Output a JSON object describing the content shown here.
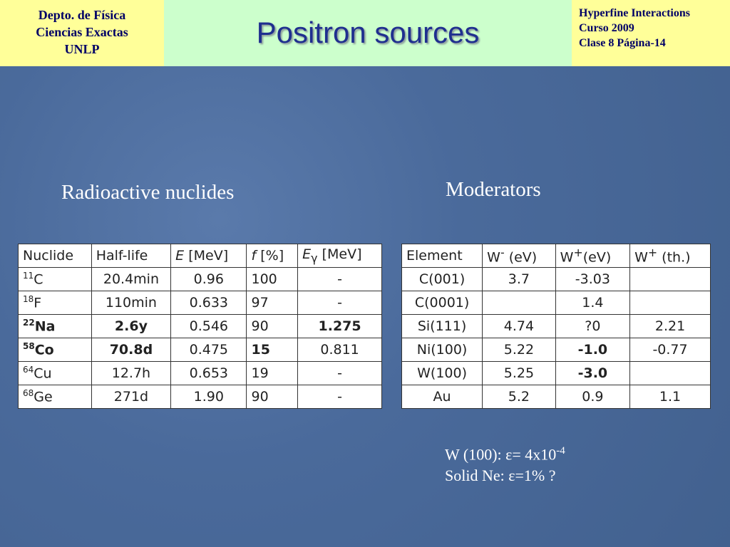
{
  "header": {
    "left": [
      "Depto. de Física",
      "Ciencias Exactas",
      "UNLP"
    ],
    "title": "Positron sources",
    "right": [
      "Hyperfine Interactions",
      "Curso 2009",
      "Clase 8  Página-14"
    ]
  },
  "nuclides": {
    "heading": "Radioactive nuclides",
    "columns": [
      "Nuclide",
      "Half-life",
      {
        "sym": "E",
        "rest": " [MeV]"
      },
      {
        "sym": "f",
        "rest": " [%]"
      },
      {
        "sym": "E",
        "sub": "γ",
        "rest": " [MeV]"
      }
    ],
    "rows": [
      {
        "mass": "11",
        "symbol": "C",
        "cells": [
          "20.4min",
          "0.96",
          "100",
          "-"
        ],
        "bold": [
          false,
          false,
          false,
          false,
          false
        ]
      },
      {
        "mass": "18",
        "symbol": "F",
        "cells": [
          "110min",
          "0.633",
          "97",
          "-"
        ],
        "bold": [
          false,
          false,
          false,
          false,
          false
        ]
      },
      {
        "mass": "22",
        "symbol": "Na",
        "cells": [
          "2.6y",
          "0.546",
          "90",
          "1.275"
        ],
        "bold": [
          true,
          true,
          false,
          false,
          true
        ]
      },
      {
        "mass": "58",
        "symbol": "Co",
        "cells": [
          "70.8d",
          "0.475",
          "15",
          "0.811"
        ],
        "bold": [
          true,
          true,
          false,
          true,
          false
        ]
      },
      {
        "mass": "64",
        "symbol": "Cu",
        "cells": [
          "12.7h",
          "0.653",
          "19",
          "-"
        ],
        "bold": [
          false,
          false,
          false,
          false,
          false
        ]
      },
      {
        "mass": "68",
        "symbol": "Ge",
        "cells": [
          "271d",
          "1.90",
          "90",
          "-"
        ],
        "bold": [
          false,
          false,
          false,
          false,
          false
        ]
      }
    ]
  },
  "moderators": {
    "heading": "Moderators",
    "columns": [
      "Element",
      {
        "sym": "W",
        "sup": "-",
        "rest": " (eV)"
      },
      {
        "sym": "W",
        "sup": "+",
        "rest": "(eV)"
      },
      {
        "sym": "W",
        "sup": "+",
        "rest": " (th.)"
      }
    ],
    "rows": [
      {
        "cells": [
          "C(001)",
          "3.7",
          "-3.03",
          ""
        ],
        "bold": [
          false,
          false,
          false,
          false
        ]
      },
      {
        "cells": [
          "C(0001)",
          "",
          "1.4",
          ""
        ],
        "bold": [
          false,
          false,
          false,
          false
        ]
      },
      {
        "cells": [
          "Si(111)",
          "4.74",
          "?0",
          "2.21"
        ],
        "bold": [
          false,
          false,
          false,
          false
        ]
      },
      {
        "cells": [
          "Ni(100)",
          "5.22",
          "-1.0",
          "-0.77"
        ],
        "bold": [
          false,
          false,
          true,
          false
        ]
      },
      {
        "cells": [
          "W(100)",
          "5.25",
          "-3.0",
          ""
        ],
        "bold": [
          false,
          false,
          true,
          false
        ]
      },
      {
        "cells": [
          "Au",
          "5.2",
          "0.9",
          "1.1"
        ],
        "bold": [
          false,
          false,
          false,
          false
        ]
      }
    ]
  },
  "notes": [
    {
      "text": "W (100): ε= 4x10",
      "sup": "-4"
    },
    {
      "text": "Solid Ne: ε=1% ?"
    }
  ]
}
